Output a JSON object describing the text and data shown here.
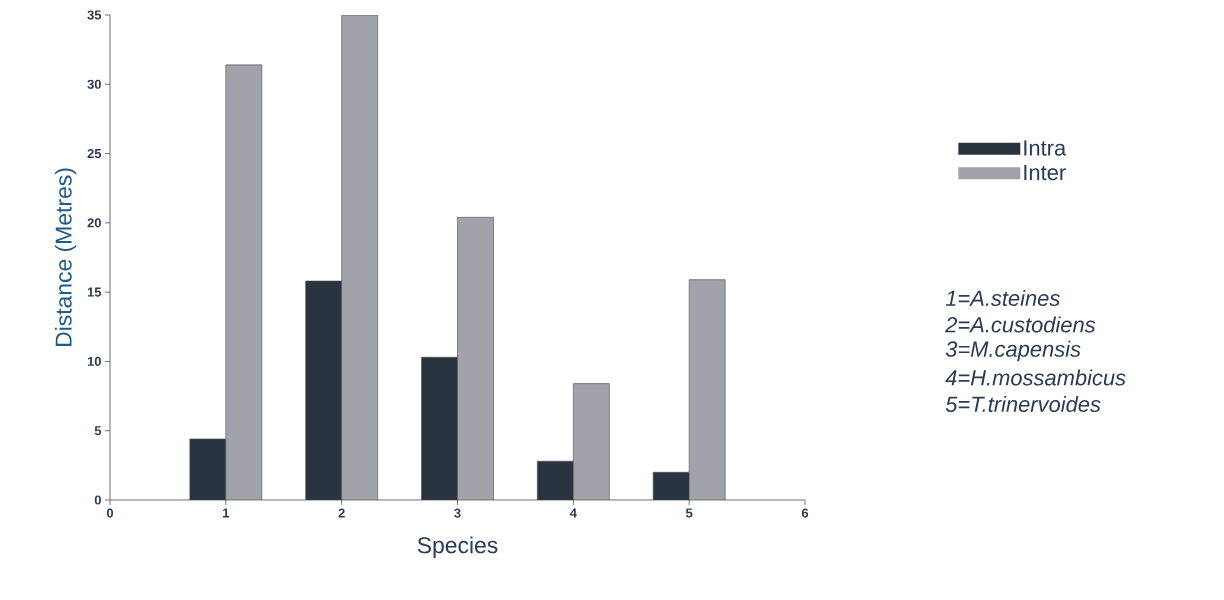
{
  "chart_data": {
    "type": "bar",
    "xlabel": "Species",
    "ylabel": "Distance (Metres)",
    "x": [
      1,
      2,
      3,
      4,
      5
    ],
    "series": [
      {
        "name": "Intra",
        "color": "#2a3340",
        "values": [
          4.4,
          15.8,
          10.3,
          2.8,
          2.0
        ]
      },
      {
        "name": "Inter",
        "color": "#a2a3aa",
        "values": [
          31.4,
          35,
          20.4,
          8.4,
          15.9
        ]
      }
    ],
    "xlim": [
      0,
      6
    ],
    "xticks": [
      0,
      1,
      2,
      3,
      4,
      5,
      6
    ],
    "ylim": [
      0,
      35
    ],
    "yticks": [
      0,
      5,
      10,
      15,
      20,
      25,
      30,
      35
    ],
    "legend": "right",
    "grid": false,
    "annotations": [
      "1=A.steines",
      "2=A.custodiens",
      "3=M.capensis",
      "4=H.mossambicus",
      "5=T.trinervoides"
    ]
  }
}
